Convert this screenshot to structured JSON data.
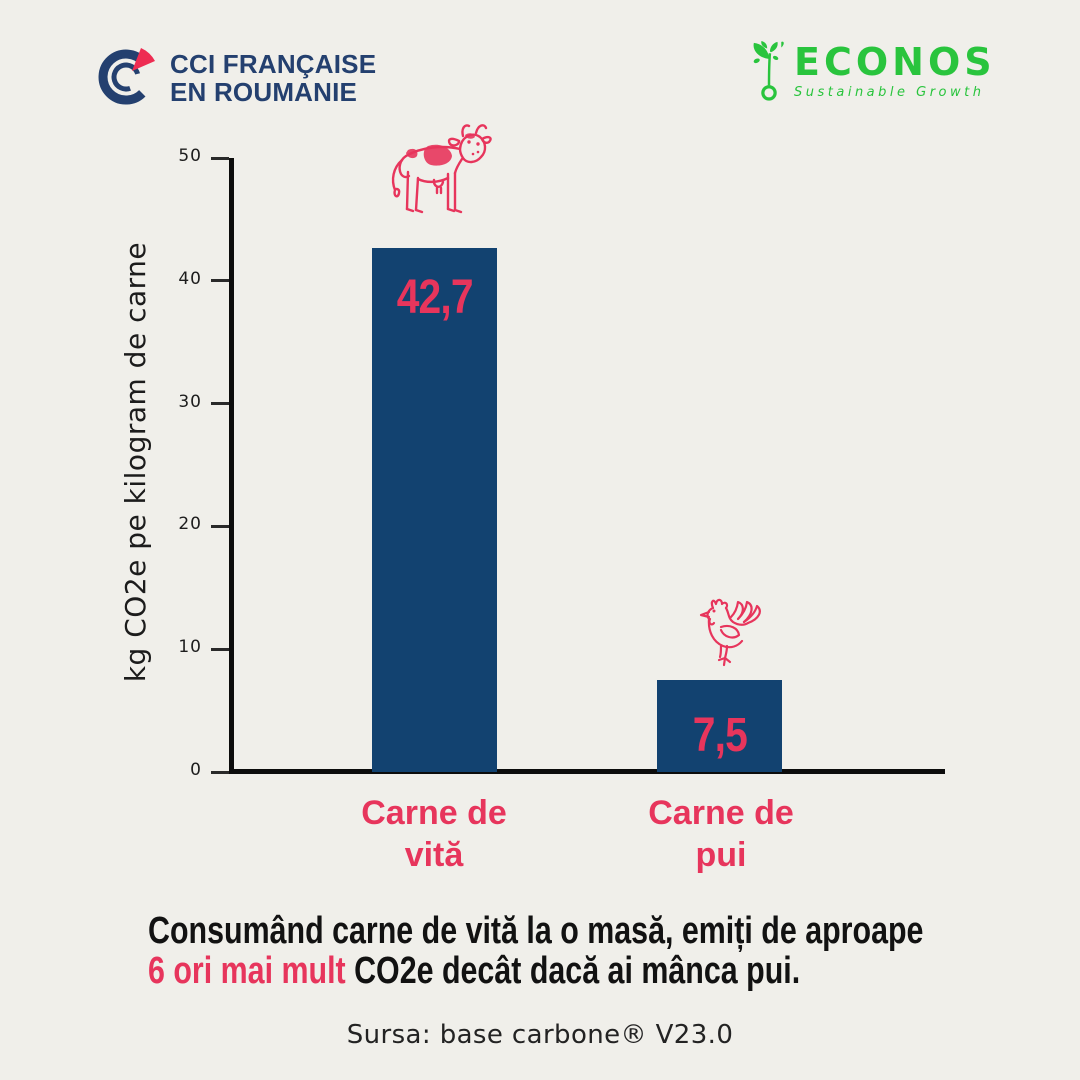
{
  "header": {
    "cci": {
      "icon": "cci-emblem-icon",
      "line1": "CCI FRANÇAISE",
      "line2": "EN ROUMANIE"
    },
    "econos": {
      "icon": "sprout-icon",
      "name": "ECONOS",
      "tagline": "Sustainable Growth"
    }
  },
  "chart_data": {
    "type": "bar",
    "title": "",
    "ylabel": "kg CO2e pe kilogram de carne",
    "xlabel": "",
    "ylim": [
      0,
      50
    ],
    "yticks": [
      0,
      10,
      20,
      30,
      40,
      50
    ],
    "ytick_labels": [
      "0",
      "10",
      "20",
      "30",
      "40",
      "50"
    ],
    "categories": [
      "Carne de vită",
      "Carne de pui"
    ],
    "values": [
      42.7,
      7.5
    ],
    "value_labels": [
      "42,7",
      "7,5"
    ],
    "bar_icons": [
      "cow-icon",
      "chicken-icon"
    ],
    "grid": false,
    "legend": false
  },
  "caption": {
    "line1": "Consumând carne de vită la o masă, emiți de aproape",
    "highlight": "6 ori mai mult",
    "line2_rest": "CO2e decât dacă ai mânca pui."
  },
  "source": "Sursa: base carbone® V23.0",
  "colors": {
    "background": "#f0efea",
    "bar": "#124270",
    "accent_pink": "#e7355c",
    "logo_navy": "#24406f",
    "logo_red": "#ee2c52",
    "logo_green": "#29c43d",
    "text": "#121212"
  }
}
